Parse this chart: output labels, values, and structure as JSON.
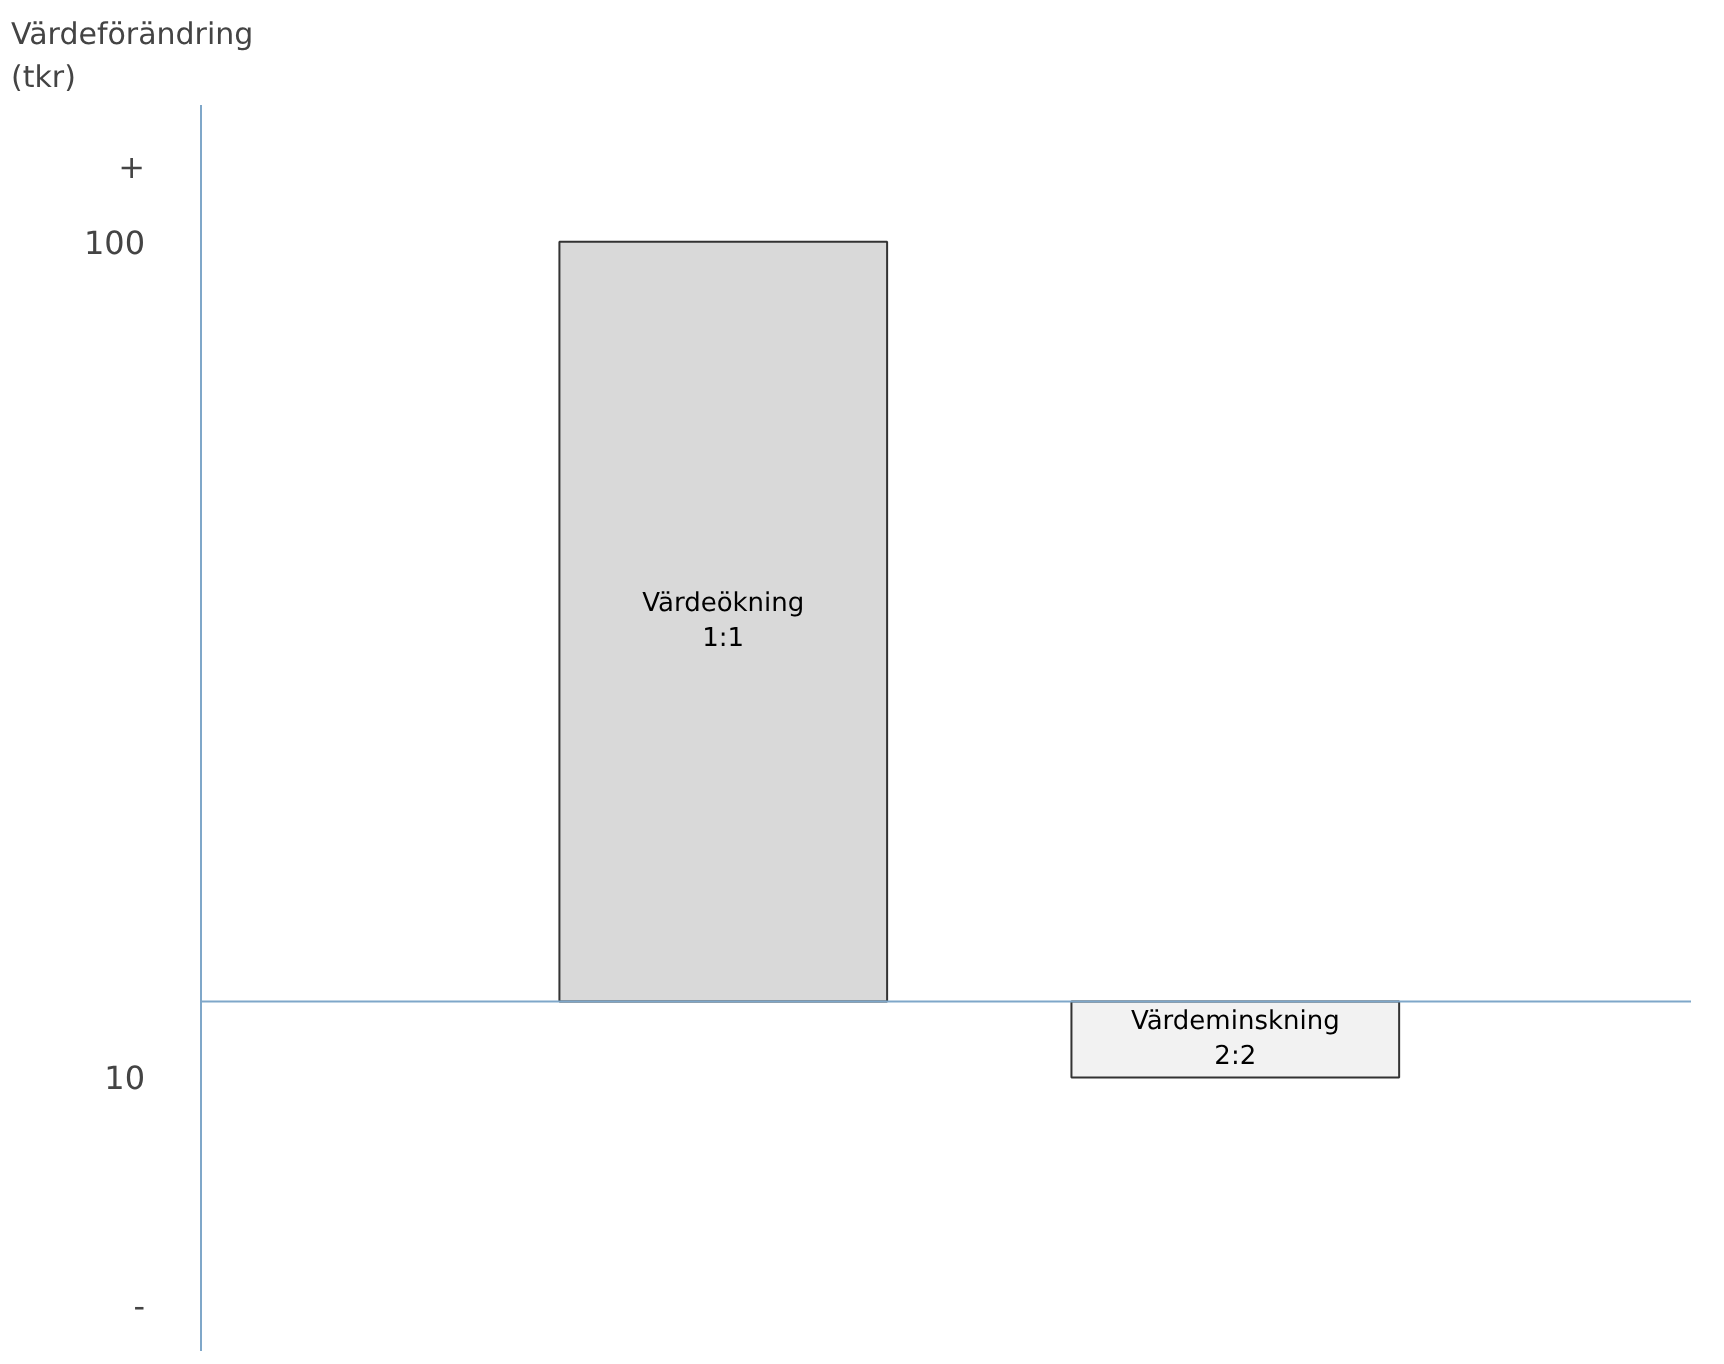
{
  "chart_data": {
    "type": "bar",
    "ylabel": "Värdeförändring\n(tkr)",
    "categories": [
      "Värdeökning\n1:1",
      "Värdeminskning\n2:2"
    ],
    "values": [
      100,
      -10
    ],
    "colors": [
      "#d9d9d9",
      "#f2f2f2"
    ],
    "ylim": [
      -46,
      118
    ],
    "yticks": [
      {
        "value": 110,
        "label": "+"
      },
      100,
      {
        "value": -10,
        "label": "10"
      },
      {
        "value": -40,
        "label": "-"
      }
    ],
    "ref_lines": [
      {
        "axis": "y",
        "value": 0,
        "color": "#7fa7c9"
      }
    ],
    "tick_labels": "y",
    "grid": false
  }
}
